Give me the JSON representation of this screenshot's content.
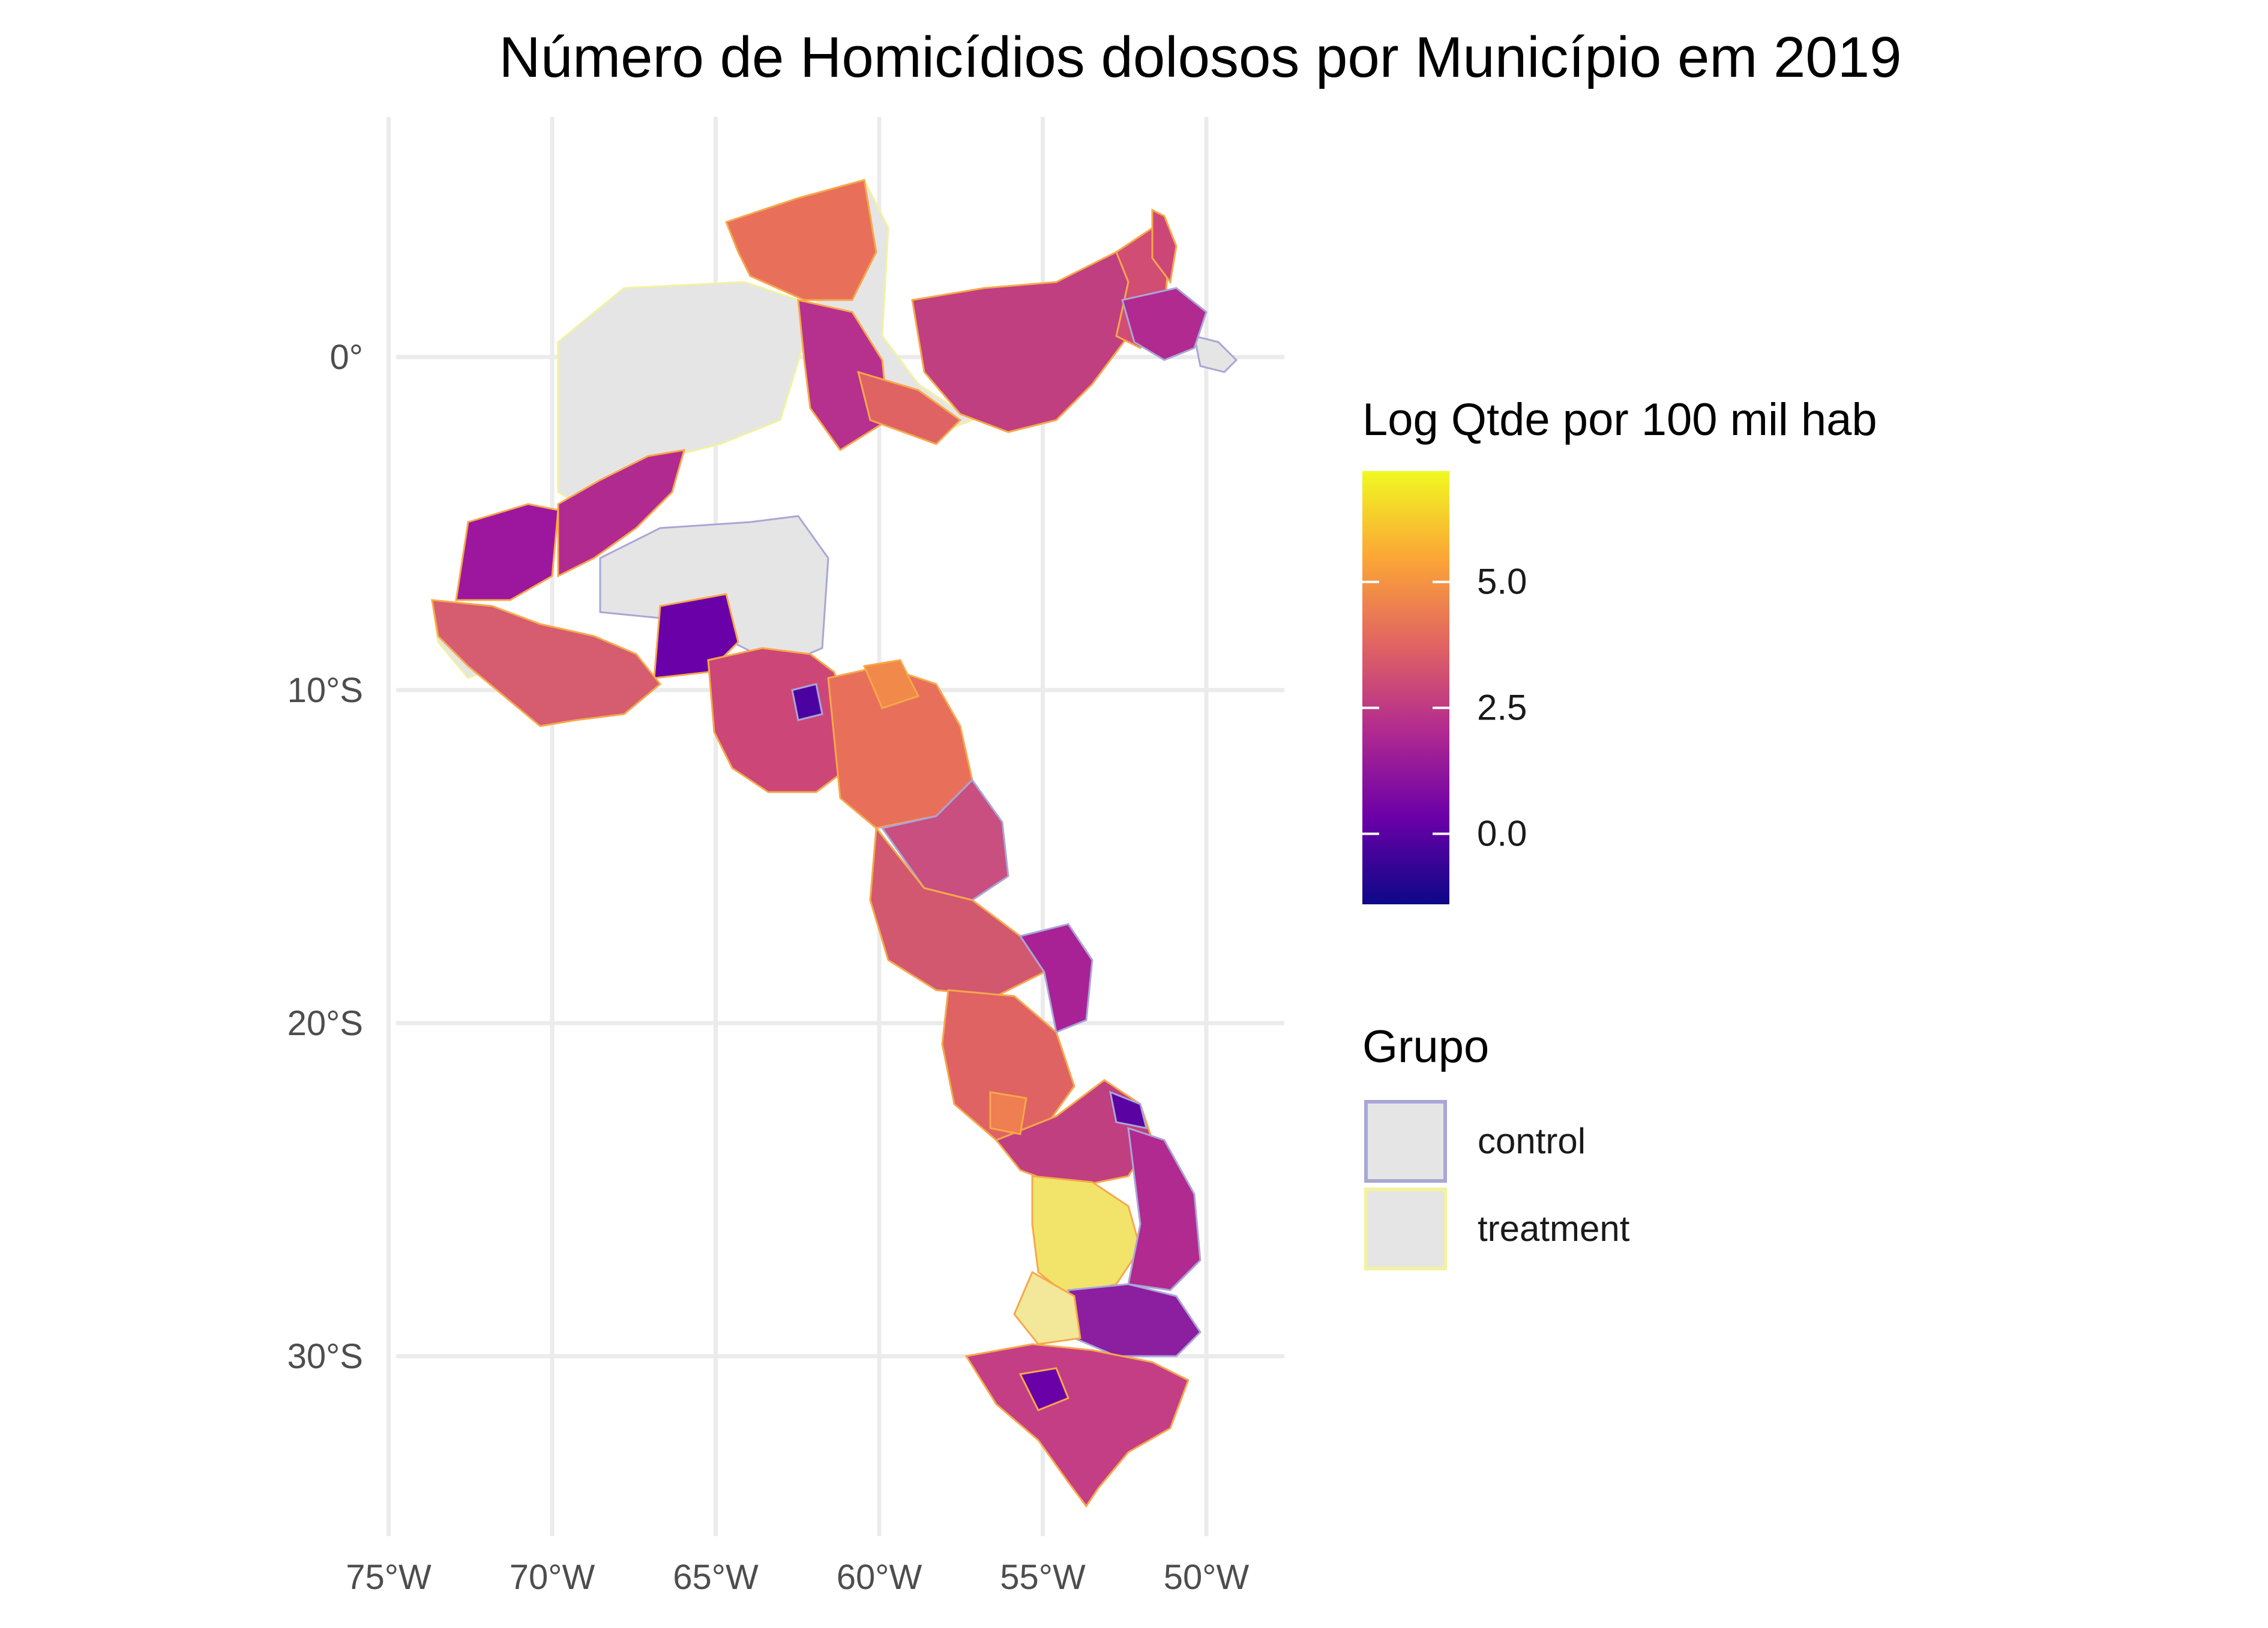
{
  "title": "Número de Homicídios dolosos por Município em 2019",
  "axes": {
    "x": {
      "ticks": [
        {
          "value": -75,
          "label": "75°W"
        },
        {
          "value": -70,
          "label": "70°W"
        },
        {
          "value": -65,
          "label": "65°W"
        },
        {
          "value": -60,
          "label": "60°W"
        },
        {
          "value": -55,
          "label": "55°W"
        },
        {
          "value": -50,
          "label": "50°W"
        }
      ]
    },
    "y": {
      "ticks": [
        {
          "value": 0,
          "label": "0°"
        },
        {
          "value": -10,
          "label": "10°S"
        },
        {
          "value": -20,
          "label": "20°S"
        },
        {
          "value": -30,
          "label": "30°S"
        }
      ]
    },
    "xlim": [
      -75,
      -48
    ],
    "ylim": [
      -35,
      7
    ]
  },
  "legend_fill": {
    "title": "Log Qtde por 100 mil hab",
    "range": [
      -1.4,
      7.2
    ],
    "ticks": [
      {
        "value": 0,
        "label": "0.0"
      },
      {
        "value": 2.5,
        "label": "2.5"
      },
      {
        "value": 5,
        "label": "5.0"
      }
    ],
    "palette": [
      "#0d0887",
      "#6a00a8",
      "#b12a90",
      "#e16462",
      "#fca636",
      "#f0f921"
    ]
  },
  "legend_group": {
    "title": "Grupo",
    "items": [
      {
        "label": "control",
        "border_color": "#a9a6d6",
        "fill": "#e5e5e5"
      },
      {
        "label": "treatment",
        "border_color": "#f2f2a0",
        "fill": "#e5e5e5"
      }
    ]
  },
  "chart_data": {
    "type": "map",
    "projection": "lon/lat",
    "na_fill": "#e5e5e5",
    "grid": true,
    "legend_placement": "right"
  }
}
